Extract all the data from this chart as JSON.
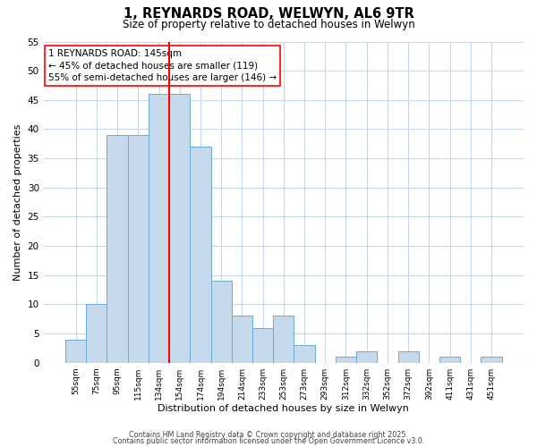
{
  "title": "1, REYNARDS ROAD, WELWYN, AL6 9TR",
  "subtitle": "Size of property relative to detached houses in Welwyn",
  "xlabel": "Distribution of detached houses by size in Welwyn",
  "ylabel": "Number of detached properties",
  "bar_labels": [
    "55sqm",
    "75sqm",
    "95sqm",
    "115sqm",
    "134sqm",
    "154sqm",
    "174sqm",
    "194sqm",
    "214sqm",
    "233sqm",
    "253sqm",
    "273sqm",
    "293sqm",
    "312sqm",
    "332sqm",
    "352sqm",
    "372sqm",
    "392sqm",
    "411sqm",
    "431sqm",
    "451sqm"
  ],
  "bar_values": [
    4,
    10,
    39,
    39,
    46,
    46,
    37,
    14,
    8,
    6,
    8,
    3,
    0,
    1,
    2,
    0,
    2,
    0,
    1,
    0,
    1
  ],
  "bar_color": "#c5d9eb",
  "bar_edgecolor": "#6aaad4",
  "ref_line_label": "1 REYNARDS ROAD: 145sqm",
  "annotation_left": "← 45% of detached houses are smaller (119)",
  "annotation_right": "55% of semi-detached houses are larger (146) →",
  "ylim": [
    0,
    55
  ],
  "yticks": [
    0,
    5,
    10,
    15,
    20,
    25,
    30,
    35,
    40,
    45,
    50,
    55
  ],
  "bg_color": "#ffffff",
  "grid_color": "#c8d8e8",
  "footnote1": "Contains HM Land Registry data © Crown copyright and database right 2025.",
  "footnote2": "Contains public sector information licensed under the Open Government Licence v3.0."
}
